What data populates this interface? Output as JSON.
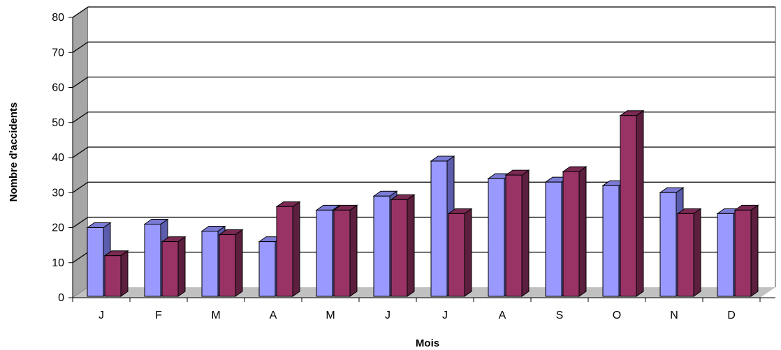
{
  "colors": {
    "series1_front": "#9999ff",
    "series1_top": "#7b7bd6",
    "series1_side": "#5c5cad",
    "series2_front": "#993366",
    "series2_top": "#7a2952",
    "series2_side": "#5c1f3d",
    "floor": "#c0c0c0",
    "wall": "#a6a6a6",
    "gridline": "#000000"
  },
  "chart_data": {
    "type": "bar",
    "title": "",
    "xlabel": "Mois",
    "ylabel": "Nombre d'accidents",
    "ylim": [
      0,
      80
    ],
    "yticks": [
      0,
      10,
      20,
      30,
      40,
      50,
      60,
      70,
      80
    ],
    "grid": true,
    "legend": "none",
    "style": "3d-clustered-column",
    "categories": [
      "J",
      "F",
      "M",
      "A",
      "M",
      "J",
      "J",
      "A",
      "S",
      "O",
      "N",
      "D"
    ],
    "series": [
      {
        "values": [
          20,
          21,
          19,
          16,
          25,
          29,
          39,
          34,
          33,
          32,
          30,
          24
        ]
      },
      {
        "values": [
          12,
          16,
          18,
          26,
          25,
          28,
          24,
          35,
          36,
          52,
          24,
          25
        ]
      }
    ]
  }
}
